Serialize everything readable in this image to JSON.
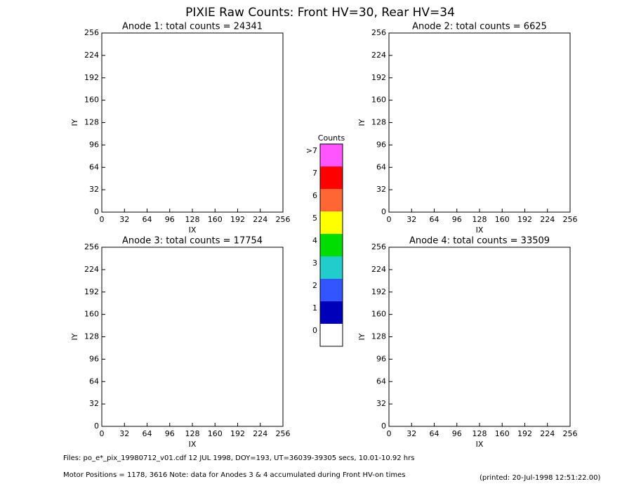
{
  "title": "PIXIE Raw Counts:  Front HV=30, Rear HV=34",
  "chart_data": [
    {
      "type": "heatmap",
      "title": "Anode 1: total counts = 24341",
      "x_label": "IX",
      "y_label": "IY",
      "xlim": [
        0,
        256
      ],
      "ylim": [
        0,
        256
      ],
      "xticks": [
        0,
        32,
        64,
        96,
        128,
        160,
        192,
        224,
        256
      ],
      "yticks": [
        0,
        32,
        64,
        96,
        128,
        160,
        192,
        224,
        256
      ]
    },
    {
      "type": "heatmap",
      "title": "Anode 2: total counts = 6625",
      "x_label": "IX",
      "y_label": "IY",
      "xlim": [
        0,
        256
      ],
      "ylim": [
        0,
        256
      ],
      "xticks": [
        0,
        32,
        64,
        96,
        128,
        160,
        192,
        224,
        256
      ],
      "yticks": [
        0,
        32,
        64,
        96,
        128,
        160,
        192,
        224,
        256
      ]
    },
    {
      "type": "heatmap",
      "title": "Anode 3: total counts = 17754",
      "x_label": "IX",
      "y_label": "IY",
      "xlim": [
        0,
        256
      ],
      "ylim": [
        0,
        256
      ],
      "xticks": [
        0,
        32,
        64,
        96,
        128,
        160,
        192,
        224,
        256
      ],
      "yticks": [
        0,
        32,
        64,
        96,
        128,
        160,
        192,
        224,
        256
      ]
    },
    {
      "type": "heatmap",
      "title": "Anode 4: total counts = 33509",
      "x_label": "IX",
      "y_label": "IY",
      "xlim": [
        0,
        256
      ],
      "ylim": [
        0,
        256
      ],
      "xticks": [
        0,
        32,
        64,
        96,
        128,
        160,
        192,
        224,
        256
      ],
      "yticks": [
        0,
        32,
        64,
        96,
        128,
        160,
        192,
        224,
        256
      ]
    }
  ],
  "colorbar": {
    "title": "Counts",
    "levels": [
      {
        "label": ">7",
        "color": "#ff55ff"
      },
      {
        "label": "7",
        "color": "#ff0000"
      },
      {
        "label": "6",
        "color": "#ff6633"
      },
      {
        "label": "5",
        "color": "#ffff00"
      },
      {
        "label": "4",
        "color": "#00dd00"
      },
      {
        "label": "3",
        "color": "#22cccc"
      },
      {
        "label": "2",
        "color": "#3355ff"
      },
      {
        "label": "1",
        "color": "#0000bb"
      },
      {
        "label": "0",
        "color": "#ffffff"
      }
    ]
  },
  "footer": {
    "files": "Files: po_e*_pix_19980712_v01.cdf     12 JUL 1998, DOY=193, UT=36039-39305 secs, 10.01-10.92 hrs",
    "motor": "Motor Positions = 1178, 3616    Note: data for Anodes 3 & 4 accumulated during Front HV-on times",
    "printed": "(printed: 20-Jul-1998 12:51:22.00)"
  }
}
